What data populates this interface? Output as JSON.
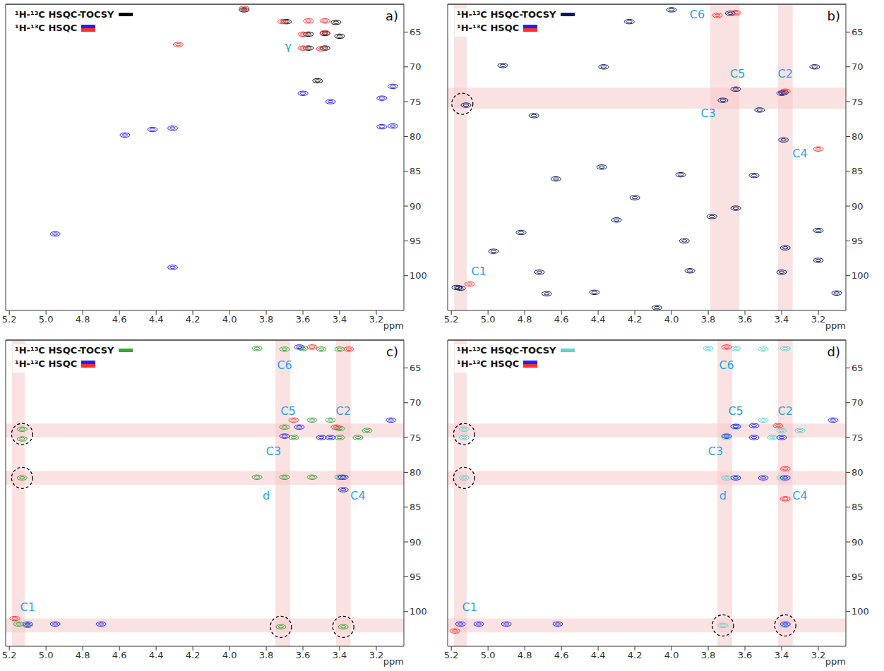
{
  "chart_data": [
    {
      "type": "scatter",
      "title": "a)",
      "legend": "upper left",
      "x_label": "ppm",
      "xlim": [
        5.22,
        3.05
      ],
      "ylim": [
        105,
        61
      ],
      "xticks": [
        5.2,
        {
          "value": 5,
          "label": "5.0"
        },
        4.8,
        4.6,
        4.4,
        4.2,
        {
          "value": 4,
          "label": "4.0"
        },
        3.8,
        3.6,
        3.4,
        3.2
      ],
      "yticks": [
        65,
        70,
        75,
        80,
        85,
        90,
        95,
        100
      ],
      "series": [
        {
          "name": "¹H-¹³C HSQC-TOCSY",
          "color": "#000000",
          "x": [
            3.92,
            3.69,
            3.57,
            3.48,
            3.4,
            3.57,
            3.48,
            3.52,
            3.42
          ],
          "y": [
            61.8,
            63.5,
            65.3,
            65.2,
            65.6,
            67.3,
            67.3,
            72,
            63.6
          ]
        },
        {
          "name": "¹H-¹³C HSQC",
          "color": "#2020ff",
          "x": [
            4.95,
            4.42,
            4.31,
            4.57,
            3.11,
            3.11,
            3.45,
            3.17,
            3.17,
            3.6,
            4.31
          ],
          "y": [
            94,
            79,
            98.8,
            79.8,
            72.8,
            78.5,
            75,
            74.5,
            78.6,
            73.8,
            78.8
          ]
        },
        {
          "name": "¹H-¹³C HSQC",
          "color": "#ff3030",
          "x": [
            3.57,
            3.48,
            3.71,
            3.6,
            3.48,
            3.6,
            3.5,
            4.28,
            3.92
          ],
          "y": [
            63.4,
            63.4,
            63.5,
            65.3,
            65.1,
            67.3,
            67.4,
            66.8,
            61.6
          ]
        }
      ],
      "annotations": [
        {
          "text": "γ",
          "x": 3.68,
          "y": 67
        }
      ],
      "bands_x": [],
      "bands_y": [],
      "circled": []
    },
    {
      "type": "scatter",
      "title": "b)",
      "legend": "upper left",
      "x_label": "ppm",
      "xlim": [
        5.22,
        3.05
      ],
      "ylim": [
        105,
        61
      ],
      "xticks": [
        5.2,
        {
          "value": 5,
          "label": "5.0"
        },
        4.8,
        4.6,
        4.4,
        4.2,
        {
          "value": 4,
          "label": "4.0"
        },
        3.8,
        3.6,
        3.4,
        3.2
      ],
      "yticks": [
        65,
        70,
        75,
        80,
        85,
        90,
        95,
        100
      ],
      "series": [
        {
          "name": "¹H-¹³C HSQC-TOCSY",
          "color": "#0a1a5c",
          "x": [
            5.17,
            5.15,
            3.65,
            3.72,
            3.39,
            3.39,
            3.68,
            5.12,
            4.37,
            4.92,
            4.75,
            4.82,
            4.72,
            4.42,
            4.68,
            4.38,
            3.95,
            3.55,
            4.3,
            3.93,
            3.2,
            3.1,
            3.78,
            4.97,
            3.38,
            3.4,
            4.08,
            3.9,
            4.2,
            4.63,
            3.52,
            3.22,
            3.2,
            4.0,
            3.65,
            4.23
          ],
          "y": [
            101.7,
            101.8,
            73.2,
            74.8,
            73.7,
            80.5,
            62.3,
            75.5,
            70,
            69.8,
            77,
            93.8,
            99.5,
            102.4,
            102.6,
            84.4,
            85.5,
            85.6,
            92,
            95,
            97.8,
            102.5,
            91.5,
            96.5,
            96,
            99.5,
            104.6,
            99.3,
            88.8,
            86.1,
            76.2,
            70,
            93.5,
            61.8,
            90.3,
            63.5
          ]
        },
        {
          "name": "¹H-¹³C HSQC",
          "color": "#2020ff",
          "x": [
            3.4
          ],
          "y": [
            73.8
          ]
        },
        {
          "name": "¹H-¹³C HSQC",
          "color": "#ff3030",
          "x": [
            3.65,
            3.75,
            3.38,
            3.2,
            5.1
          ],
          "y": [
            62.2,
            62.6,
            73.5,
            81.8,
            101.2
          ]
        }
      ],
      "annotations": [
        {
          "text": "C6",
          "x": 3.86,
          "y": 62.5
        },
        {
          "text": "C5",
          "x": 3.64,
          "y": 71
        },
        {
          "text": "C2",
          "x": 3.38,
          "y": 71
        },
        {
          "text": "C3",
          "x": 3.8,
          "y": 76.6
        },
        {
          "text": "C4",
          "x": 3.3,
          "y": 82.4
        },
        {
          "text": "C1",
          "x": 5.05,
          "y": 99.4
        }
      ],
      "bands_x": [
        [
          5.185,
          5.115
        ],
        [
          3.79,
          3.63
        ],
        [
          3.42,
          3.34
        ]
      ],
      "bands_y": [
        [
          73,
          76
        ]
      ],
      "circled": [
        [
          5.14,
          75.3
        ]
      ]
    },
    {
      "type": "scatter",
      "title": "c)",
      "legend": "upper left",
      "x_label": "ppm",
      "xlim": [
        5.22,
        3.05
      ],
      "ylim": [
        105,
        61
      ],
      "xticks": [
        5.2,
        {
          "value": 5,
          "label": "5.0"
        },
        4.8,
        4.6,
        4.4,
        4.2,
        {
          "value": 4,
          "label": "4.0"
        },
        3.8,
        3.6,
        3.4,
        3.2
      ],
      "yticks": [
        65,
        70,
        75,
        80,
        85,
        90,
        95,
        100
      ],
      "series": [
        {
          "name": "¹H-¹³C HSQC-TOCSY",
          "color": "#3aa33a",
          "x": [
            3.85,
            3.7,
            3.6,
            3.5,
            3.4,
            3.7,
            3.65,
            3.4,
            3.4,
            3.25,
            3.55,
            3.45,
            3.7,
            3.55,
            3.4,
            3.85,
            5.13,
            5.13,
            5.13,
            5.15,
            5.1,
            3.72,
            3.38,
            3.3
          ],
          "y": [
            62.2,
            62.3,
            62.2,
            62.3,
            62.3,
            73.5,
            75,
            73.7,
            75,
            74,
            72.5,
            72.5,
            80.7,
            80.7,
            80.7,
            80.7,
            73.8,
            75.2,
            80.8,
            101.8,
            102,
            102.2,
            102.2,
            75
          ]
        },
        {
          "name": "¹H-¹³C HSQC",
          "color": "#2020ff",
          "x": [
            5.1,
            4.95,
            3.7,
            3.62,
            3.45,
            3.38,
            3.38,
            3.12,
            3.5,
            4.7,
            3.62
          ],
          "y": [
            101.8,
            101.8,
            74.8,
            73.5,
            75,
            80.7,
            82.5,
            72.5,
            75,
            101.8,
            62
          ]
        },
        {
          "name": "¹H-¹³C HSQC",
          "color": "#ff3030",
          "x": [
            3.55,
            3.35,
            3.65,
            5.17,
            3.42
          ],
          "y": [
            62,
            62.3,
            72.5,
            101,
            73.5
          ]
        }
      ],
      "annotations": [
        {
          "text": "C6",
          "x": 3.7,
          "y": 64.6
        },
        {
          "text": "C5",
          "x": 3.68,
          "y": 71.2
        },
        {
          "text": "C2",
          "x": 3.38,
          "y": 71.2
        },
        {
          "text": "C3",
          "x": 3.76,
          "y": 77
        },
        {
          "text": "d",
          "x": 3.8,
          "y": 83.3
        },
        {
          "text": "C4",
          "x": 3.3,
          "y": 83.3
        },
        {
          "text": "C1",
          "x": 5.1,
          "y": 99.4
        }
      ],
      "bands_x": [
        [
          5.185,
          5.115
        ],
        [
          3.75,
          3.67
        ],
        [
          3.42,
          3.34
        ]
      ],
      "bands_y": [
        [
          73,
          75
        ],
        [
          79.8,
          81.8
        ],
        [
          101,
          103
        ]
      ],
      "circled": [
        [
          5.13,
          74.5
        ],
        [
          5.13,
          80.8
        ],
        [
          3.72,
          102.2
        ],
        [
          3.38,
          102.2
        ]
      ]
    },
    {
      "type": "scatter",
      "title": "d)",
      "legend": "upper left",
      "x_label": "ppm",
      "xlim": [
        5.22,
        3.05
      ],
      "ylim": [
        105,
        61
      ],
      "xticks": [
        5.2,
        {
          "value": 5,
          "label": "5.0"
        },
        4.8,
        4.6,
        4.4,
        4.2,
        {
          "value": 4,
          "label": "4.0"
        },
        3.8,
        3.6,
        3.4,
        3.2
      ],
      "yticks": [
        65,
        70,
        75,
        80,
        85,
        90,
        95,
        100
      ],
      "series": [
        {
          "name": "¹H-¹³C HSQC-TOCSY",
          "color": "#5fd3d3",
          "x": [
            3.8,
            3.65,
            3.5,
            3.38,
            3.65,
            3.7,
            3.4,
            3.45,
            3.7,
            3.65,
            3.4,
            5.13,
            5.13,
            5.13,
            3.72,
            3.38,
            3.3,
            3.5
          ],
          "y": [
            62.2,
            62.2,
            62.3,
            62.2,
            73.5,
            75,
            74,
            75,
            80.8,
            80.8,
            80.8,
            73.8,
            75,
            80.8,
            102,
            102,
            74,
            72.5
          ]
        },
        {
          "name": "¹H-¹³C HSQC",
          "color": "#2020ff",
          "x": [
            5.15,
            5.05,
            4.9,
            3.65,
            3.7,
            3.4,
            3.38,
            3.5,
            3.65,
            3.12,
            3.38,
            3.55,
            3.55,
            4.62
          ],
          "y": [
            101.8,
            101.8,
            101.8,
            73.4,
            74.8,
            75,
            80.8,
            80.8,
            80.8,
            72.5,
            101.8,
            75,
            73.3,
            101.8
          ]
        },
        {
          "name": "¹H-¹³C HSQC",
          "color": "#ff3030",
          "x": [
            3.7,
            5.18,
            3.38,
            3.42,
            3.38
          ],
          "y": [
            62,
            102.8,
            79.5,
            73.3,
            83.8
          ]
        }
      ],
      "annotations": [
        {
          "text": "C6",
          "x": 3.7,
          "y": 64.6
        },
        {
          "text": "C5",
          "x": 3.65,
          "y": 71.2
        },
        {
          "text": "C2",
          "x": 3.38,
          "y": 71.2
        },
        {
          "text": "C3",
          "x": 3.76,
          "y": 77
        },
        {
          "text": "d",
          "x": 3.72,
          "y": 83.3
        },
        {
          "text": "C4",
          "x": 3.3,
          "y": 83.3
        },
        {
          "text": "C1",
          "x": 5.1,
          "y": 99.4
        }
      ],
      "bands_x": [
        [
          5.185,
          5.115
        ],
        [
          3.75,
          3.67
        ],
        [
          3.42,
          3.34
        ]
      ],
      "bands_y": [
        [
          73,
          75
        ],
        [
          79.8,
          81.8
        ],
        [
          101,
          103
        ]
      ],
      "circled": [
        [
          5.13,
          74.5
        ],
        [
          5.13,
          80.8
        ],
        [
          3.72,
          102
        ],
        [
          3.38,
          102
        ]
      ]
    }
  ]
}
